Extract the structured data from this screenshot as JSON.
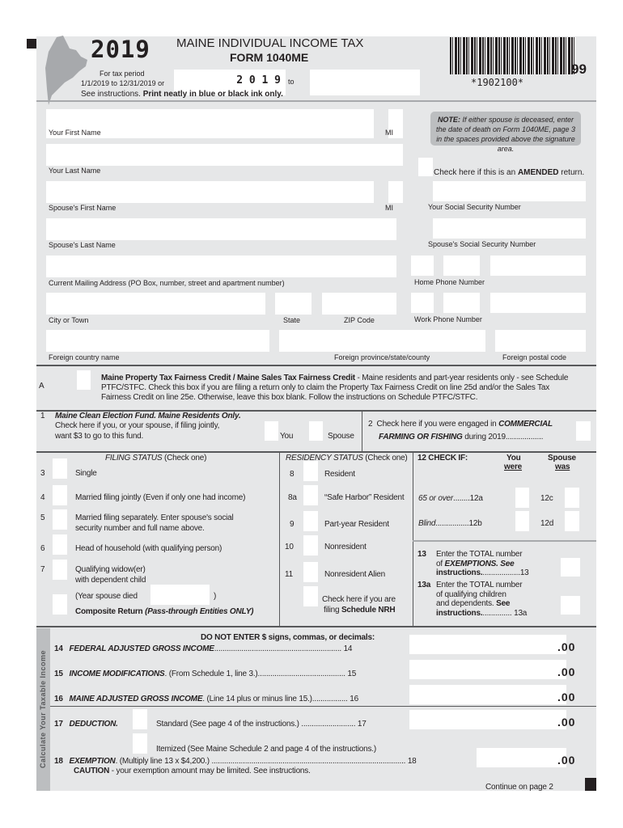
{
  "header": {
    "year": "2019",
    "title": "MAINE INDIVIDUAL INCOME TAX",
    "form": "FORM 1040ME",
    "tax_period_label": "For tax period",
    "tax_period_range": "1/1/2019 to 12/31/2019 or",
    "period_start_value": "2 0 1 9",
    "to_label": "to",
    "period_end_value": "",
    "instructions_prefix": "See instructions.",
    "instructions_bold": "Print neatly in blue or black ink only.",
    "barcode_text": "*1902100*",
    "form_code": "99"
  },
  "note": {
    "bold": "NOTE:",
    "text": "If either spouse is deceased, enter the date of death on Form 1040ME, page 3 in the spaces provided above the signature area."
  },
  "fields": {
    "first_name": "Your First Name",
    "mi": "MI",
    "last_name": "Your Last Name",
    "amended_prefix": "Check here if this is an ",
    "amended_bold": "AMENDED",
    "amended_suffix": " return.",
    "spouse_first": "Spouse's First Name",
    "ssn": "Your Social Security Number",
    "spouse_last": "Spouse's Last Name",
    "spouse_ssn": "Spouse's Social Security Number",
    "address": "Current Mailing Address (PO Box, number, street and apartment number)",
    "home_phone": "Home Phone Number",
    "city": "City or Town",
    "state": "State",
    "zip": "ZIP Code",
    "work_phone": "Work Phone Number",
    "foreign_country": "Foreign country name",
    "foreign_province": "Foreign province/state/county",
    "foreign_postal": "Foreign postal code"
  },
  "section_a": {
    "letter": "A",
    "bold": "Maine Property Tax Fairness Credit / Maine Sales Tax Fairness Credit",
    "line1": " - Maine residents and part-year residents only - see Schedule",
    "line2": "PTFC/STFC. Check this box if you are filing a return only to claim the Property Tax Fairness Credit on line 25d and/or the Sales Tax",
    "line3": "Fairness Credit on line 25e. Otherwise, leave this box blank. Follow the instructions on Schedule PTFC/STFC."
  },
  "line1": {
    "num": "1",
    "title": "Maine Clean Election Fund. Maine Residents Only.",
    "text1": "Check here if you, or your spouse, if filing jointly,",
    "text2": "want $3 to go to this fund.",
    "you": "You",
    "spouse": "Spouse"
  },
  "line2": {
    "num": "2",
    "text1": "Check here if you were engaged in ",
    "bold1": "COMMERCIAL",
    "bold2": "FARMING OR FISHING",
    "text2": " during 2019.................."
  },
  "filing_status": {
    "title": "FILING STATUS",
    "check_one": " (Check one)",
    "items": [
      {
        "num": "3",
        "label": "Single"
      },
      {
        "num": "4",
        "label": "Married filing jointly (Even if only one had income)"
      },
      {
        "num": "5",
        "label": "Married filing separately. Enter spouse's social",
        "label2": "security number and full name above."
      },
      {
        "num": "6",
        "label": "Head of household (with qualifying person)"
      },
      {
        "num": "7",
        "label": "Qualifying widow(er)",
        "label2": "with dependent child"
      }
    ],
    "year_spouse_died": "(Year spouse died",
    "close_paren": ")",
    "composite": "Composite Return",
    "composite_italic": "(Pass-through Entities ONLY)"
  },
  "residency_status": {
    "title": "RESIDENCY STATUS",
    "check_one": " (Check one)",
    "items": [
      {
        "num": "8",
        "label": "Resident"
      },
      {
        "num": "8a",
        "label": "“Safe Harbor” Resident"
      },
      {
        "num": "9",
        "label": "Part-year Resident"
      },
      {
        "num": "10",
        "label": "Nonresident"
      },
      {
        "num": "11",
        "label": "Nonresident Alien"
      }
    ],
    "nrh1": "Check here if you are",
    "nrh2": "filing ",
    "nrh_bold": "Schedule NRH"
  },
  "check_if": {
    "title": "12  CHECK IF:",
    "you": "You",
    "you2": "were",
    "spouse": "Spouse",
    "spouse2": "was",
    "age": "65 or over",
    "age_you": "........12a",
    "age_spouse": "12c",
    "blind": "Blind",
    "blind_you": "................12b",
    "blind_spouse": "12d"
  },
  "line13": {
    "num": "13",
    "t1": "Enter the TOTAL number",
    "t2": "of ",
    "t2b": "EXEMPTIONS. See",
    "t3": "instructions.",
    "t3d": "..................13"
  },
  "line13a": {
    "num": "13a",
    "t1": "Enter the TOTAL number",
    "t2": "of qualifying children",
    "t3": "and dependents. ",
    "t3b": "See",
    "t4": "instructions.",
    "t4d": ".............. 13a"
  },
  "income": {
    "side_label": "Calculate Your Taxable Income",
    "warning": "DO NOT ENTER $ signs, commas, or decimals:",
    "cents": ".00",
    "lines": [
      {
        "num": "14",
        "title": "FEDERAL ADJUSTED GROSS INCOME",
        "text": "............................................................. 14"
      },
      {
        "num": "15",
        "title": "INCOME MODIFICATIONS",
        "text": ". (From Schedule 1, line 3.).......................................... 15"
      },
      {
        "num": "16",
        "title": "MAINE ADJUSTED GROSS INCOME",
        "text": ". (Line 14 plus or minus line 15.)................. 16"
      },
      {
        "num": "17",
        "title": "DEDUCTION.",
        "text": "Standard (See page 4 of the instructions.) .......................... 17"
      },
      {
        "num": "18",
        "title": "EXEMPTION",
        "text": ". (Multiply line 13 x $4,200.) ............................................................................................. 18"
      }
    ],
    "itemized": "Itemized (See Maine Schedule 2 and page 4 of the instructions.)",
    "caution_bold": "CAUTION",
    "caution": " - your exemption amount may be limited. See instructions."
  },
  "footer": {
    "continue": "Continue on page 2"
  }
}
